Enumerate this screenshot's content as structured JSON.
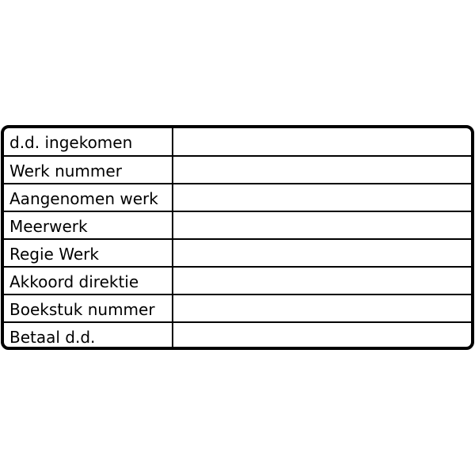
{
  "form": {
    "rows": [
      {
        "label": "d.d. ingekomen",
        "value": ""
      },
      {
        "label": "Werk nummer",
        "value": ""
      },
      {
        "label": "Aangenomen werk",
        "value": ""
      },
      {
        "label": "Meerwerk",
        "value": ""
      },
      {
        "label": "Regie Werk",
        "value": ""
      },
      {
        "label": "Akkoord direktie",
        "value": ""
      },
      {
        "label": "Boekstuk nummer",
        "value": ""
      },
      {
        "label": "Betaal d.d.",
        "value": ""
      }
    ]
  }
}
